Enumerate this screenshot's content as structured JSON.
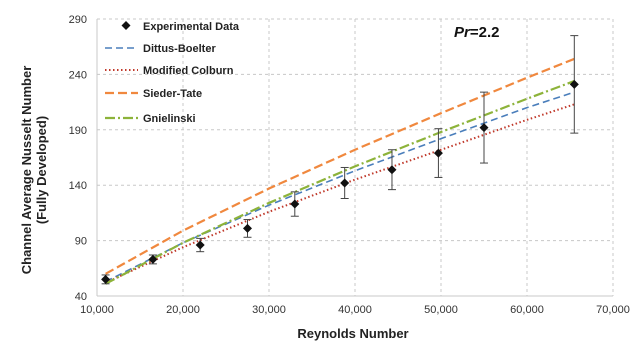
{
  "chart_data": {
    "type": "line",
    "xlabel": "Reynolds Number",
    "ylabel_line1": "Channel Average Nusselt Number",
    "ylabel_line2": "(Fully Developed)",
    "annotation": {
      "var": "Pr",
      "rest": "=2.2"
    },
    "xlim": [
      10000,
      70000
    ],
    "ylim": [
      40,
      290
    ],
    "x_ticks": [
      10000,
      20000,
      30000,
      40000,
      50000,
      60000,
      70000
    ],
    "x_tick_labels": [
      "10,000",
      "20,000",
      "30,000",
      "40,000",
      "50,000",
      "60,000",
      "70,000"
    ],
    "y_ticks": [
      40,
      90,
      140,
      190,
      240,
      290
    ],
    "y_tick_labels": [
      "40",
      "90",
      "140",
      "190",
      "240",
      "290"
    ],
    "grid": "dashed horizontal and vertical",
    "legend_position": "top-left",
    "experimental": {
      "name": "Experimental Data",
      "color": "#111111",
      "x": [
        11000,
        16500,
        22000,
        27500,
        33000,
        38800,
        44300,
        49700,
        55000,
        65500
      ],
      "y": [
        55,
        73,
        86,
        101,
        123,
        142,
        154,
        169,
        192,
        231
      ],
      "err": [
        4,
        4,
        6,
        8,
        11,
        14,
        18,
        22,
        32,
        44
      ]
    },
    "series": [
      {
        "name": "Dittus-Boelter",
        "color": "#4a7ebb",
        "dash": "7,4",
        "width": 1.6,
        "x": [
          11000,
          20000,
          30000,
          40000,
          50000,
          60000,
          65500
        ],
        "y": [
          53,
          88,
          122,
          153,
          182,
          210,
          224
        ]
      },
      {
        "name": "Modified Colburn",
        "color": "#c0392b",
        "dash": "1.5,2.5",
        "width": 2,
        "x": [
          11000,
          20000,
          30000,
          40000,
          50000,
          60000,
          65500
        ],
        "y": [
          52,
          84,
          116,
          145,
          172,
          199,
          213
        ]
      },
      {
        "name": "Sieder-Tate",
        "color": "#f0883e",
        "dash": "9,4",
        "width": 2.2,
        "x": [
          11000,
          20000,
          30000,
          40000,
          50000,
          60000,
          65500
        ],
        "y": [
          60,
          99,
          137,
          172,
          205,
          237,
          254
        ]
      },
      {
        "name": "Gnielinski",
        "color": "#8db33a",
        "dash": "10,3,2,3",
        "width": 2.2,
        "x": [
          11000,
          20000,
          30000,
          40000,
          50000,
          60000,
          65500
        ],
        "y": [
          51,
          88,
          124,
          157,
          188,
          218,
          234
        ]
      }
    ]
  }
}
